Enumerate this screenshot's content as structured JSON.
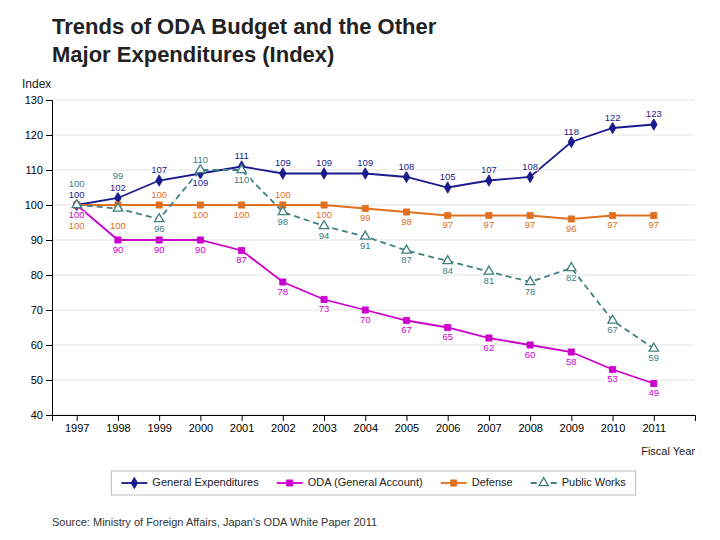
{
  "chart_data": {
    "type": "line",
    "title": [
      "Trends of ODA Budget and the Other",
      "Major Expenditures (Index)"
    ],
    "y_label": "Index",
    "x_label": "Fiscal Year",
    "source": "Source: Ministry of Foreign Affairs, Japan's ODA White Paper 2011",
    "x": [
      1997,
      1998,
      1999,
      2000,
      2001,
      2002,
      2003,
      2004,
      2005,
      2006,
      2007,
      2008,
      2009,
      2010,
      2011
    ],
    "series": [
      {
        "name": "General Expenditures",
        "color": "#1a1a8c",
        "marker": "diamond",
        "line_style": "solid",
        "values": [
          100,
          102,
          107,
          109,
          111,
          109,
          109,
          109,
          108,
          105,
          107,
          108,
          118,
          122,
          123
        ]
      },
      {
        "name": "ODA (General Account)",
        "color": "#cc00cc",
        "marker": "square",
        "line_style": "solid",
        "values": [
          100,
          90,
          90,
          90,
          87,
          78,
          73,
          70,
          67,
          65,
          62,
          60,
          58,
          53,
          49
        ]
      },
      {
        "name": "Defense",
        "color": "#e07020",
        "marker": "square",
        "line_style": "solid",
        "values": [
          100,
          100,
          100,
          100,
          100,
          100,
          100,
          99,
          98,
          97,
          97,
          97,
          96,
          97,
          97
        ]
      },
      {
        "name": "Public Works",
        "color": "#408080",
        "marker": "triangle-open",
        "line_style": "dashed",
        "values": [
          100,
          99,
          96,
          110,
          110,
          98,
          94,
          91,
          87,
          84,
          81,
          78,
          82,
          67,
          59
        ]
      }
    ],
    "xlim": [
      1996.4,
      2012.0
    ],
    "xticks": [
      1997,
      1998,
      1999,
      2000,
      2001,
      2002,
      2003,
      2004,
      2005,
      2006,
      2007,
      2008,
      2009,
      2010,
      2011
    ],
    "ylim": [
      40,
      130
    ],
    "yticks": [
      40,
      50,
      60,
      70,
      80,
      90,
      100,
      110,
      120,
      130
    ],
    "grid": true,
    "legend": "bottom",
    "data_labels": true
  }
}
